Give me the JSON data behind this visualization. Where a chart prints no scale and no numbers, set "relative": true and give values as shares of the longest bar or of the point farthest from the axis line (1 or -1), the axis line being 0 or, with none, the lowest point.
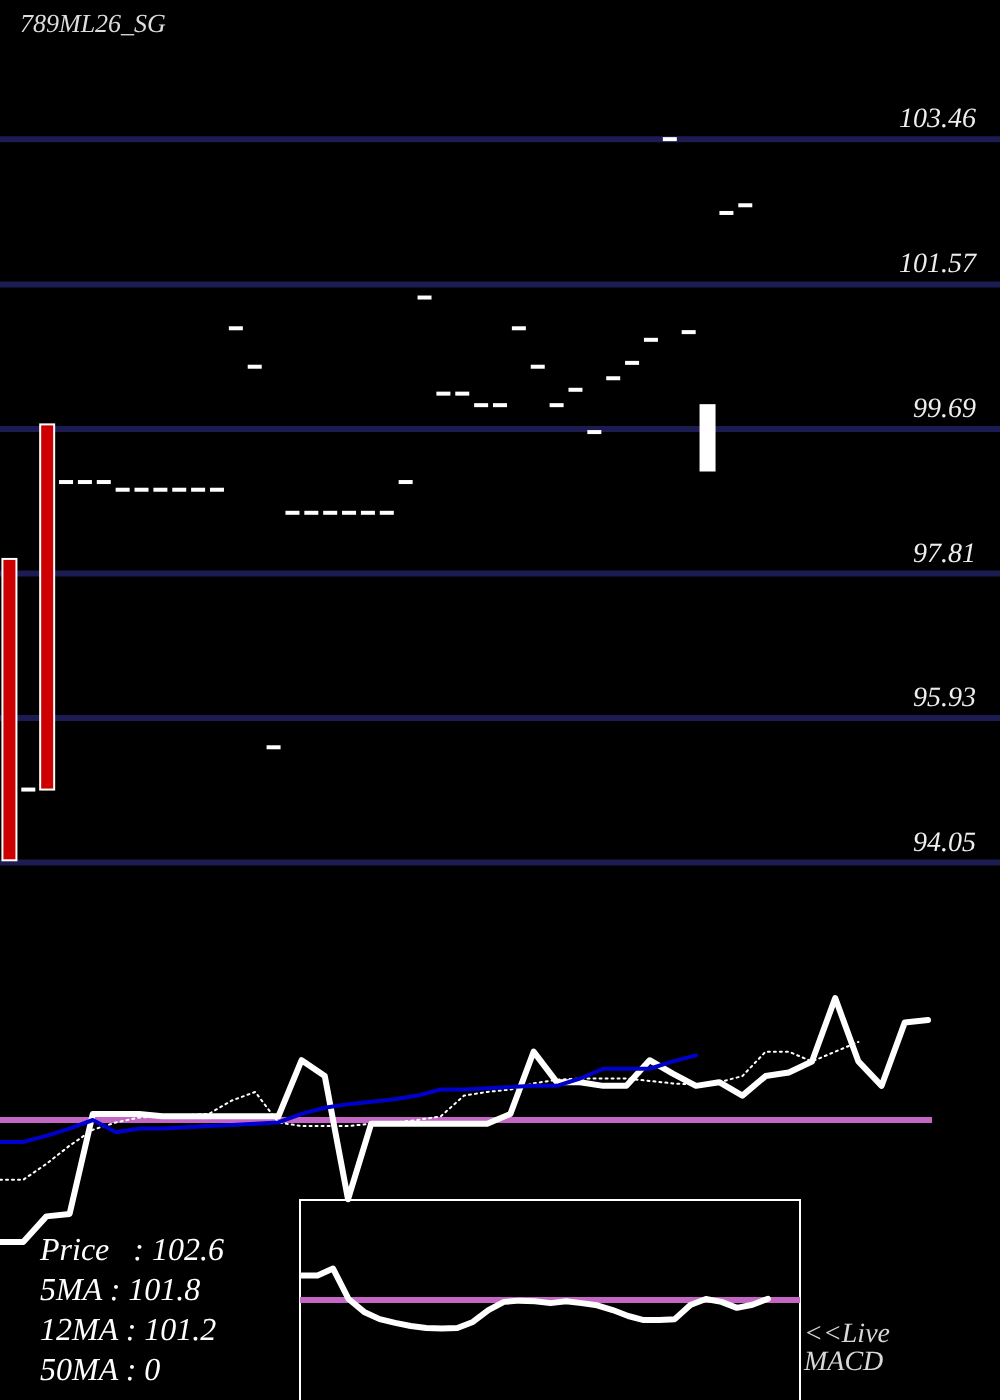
{
  "chart_data": [
    {
      "type": "candlestick",
      "title": "789ML26_SG",
      "categories": [
        null,
        null,
        null,
        null,
        null,
        null,
        null,
        null,
        null,
        null,
        null,
        null,
        null,
        null,
        null,
        null,
        null,
        null,
        null,
        null,
        null,
        null,
        null,
        null,
        null,
        null,
        null,
        null,
        null,
        null,
        null,
        null,
        null,
        null,
        null,
        null,
        null,
        null,
        null,
        null,
        null,
        null,
        null,
        null,
        null,
        null,
        null,
        null,
        null,
        null,
        null,
        null,
        null
      ],
      "ohlc": [
        [
          98.0,
          98.0,
          94.08,
          94.08
        ],
        [
          95.0,
          95.0,
          95.0,
          95.0
        ],
        [
          99.75,
          99.75,
          95.0,
          95.0
        ],
        [
          99.0,
          99.0,
          99.0,
          99.0
        ],
        [
          99.0,
          99.0,
          99.0,
          99.0
        ],
        [
          99.0,
          99.0,
          99.0,
          99.0
        ],
        [
          98.9,
          98.9,
          98.9,
          98.9
        ],
        [
          98.9,
          98.9,
          98.9,
          98.9
        ],
        [
          98.9,
          98.9,
          98.9,
          98.9
        ],
        [
          98.9,
          98.9,
          98.9,
          98.9
        ],
        [
          98.9,
          98.9,
          98.9,
          98.9
        ],
        [
          98.9,
          98.9,
          98.9,
          98.9
        ],
        [
          101.0,
          101.0,
          101.0,
          101.0
        ],
        [
          100.5,
          100.5,
          100.5,
          100.5
        ],
        [
          95.55,
          95.55,
          95.55,
          95.55
        ],
        [
          98.6,
          98.6,
          98.6,
          98.6
        ],
        [
          98.6,
          98.6,
          98.6,
          98.6
        ],
        [
          98.6,
          98.6,
          98.6,
          98.6
        ],
        [
          98.6,
          98.6,
          98.6,
          98.6
        ],
        [
          98.6,
          98.6,
          98.6,
          98.6
        ],
        [
          98.6,
          98.6,
          98.6,
          98.6
        ],
        [
          99.0,
          99.0,
          99.0,
          99.0
        ],
        [
          101.4,
          101.4,
          101.4,
          101.4
        ],
        [
          100.15,
          100.15,
          100.15,
          100.15
        ],
        [
          100.15,
          100.15,
          100.15,
          100.15
        ],
        [
          100.0,
          100.0,
          100.0,
          100.0
        ],
        [
          100.0,
          100.0,
          100.0,
          100.0
        ],
        [
          101.0,
          101.0,
          101.0,
          101.0
        ],
        [
          100.5,
          100.5,
          100.5,
          100.5
        ],
        [
          100.0,
          100.0,
          100.0,
          100.0
        ],
        [
          100.2,
          100.2,
          100.2,
          100.2
        ],
        [
          99.65,
          99.65,
          99.65,
          99.65
        ],
        [
          100.35,
          100.35,
          100.35,
          100.35
        ],
        [
          100.55,
          100.55,
          100.55,
          100.55
        ],
        [
          100.85,
          100.85,
          100.85,
          100.85
        ],
        [
          103.46,
          103.46,
          103.46,
          103.46
        ],
        [
          100.95,
          100.95,
          100.95,
          100.95
        ],
        [
          99.15,
          100.0,
          99.15,
          100.0
        ],
        [
          102.5,
          102.5,
          102.5,
          102.5
        ],
        [
          102.6,
          102.6,
          102.6,
          102.6
        ],
        null,
        null,
        null,
        null,
        null,
        null,
        null,
        null,
        null,
        null,
        null,
        null,
        null
      ],
      "colors": [
        "#cc0000",
        "#ffffff",
        "#cc0000",
        "#ffffff",
        "#ffffff",
        "#ffffff",
        "#ffffff",
        "#ffffff",
        "#ffffff",
        "#ffffff",
        "#ffffff",
        "#ffffff",
        "#ffffff",
        "#ffffff",
        "#ffffff",
        "#ffffff",
        "#ffffff",
        "#ffffff",
        "#ffffff",
        "#ffffff",
        "#ffffff",
        "#ffffff",
        "#ffffff",
        "#ffffff",
        "#ffffff",
        "#ffffff",
        "#ffffff",
        "#ffffff",
        "#ffffff",
        "#ffffff",
        "#ffffff",
        "#ffffff",
        "#ffffff",
        "#ffffff",
        "#ffffff",
        "#ffffff",
        "#ffffff",
        "#ffffff",
        "#ffffff",
        "#ffffff",
        null,
        null,
        null,
        null,
        null,
        null,
        null,
        null,
        null,
        null,
        null,
        null,
        null
      ],
      "ylim": [
        94.05,
        105.27
      ],
      "yticks": [
        94.05,
        95.93,
        97.81,
        99.69,
        101.57,
        103.46
      ],
      "grid": true
    },
    {
      "type": "line",
      "relative": true,
      "categories": [
        null,
        null,
        null,
        null,
        null,
        null,
        null,
        null,
        null,
        null,
        null,
        null,
        null,
        null,
        null,
        null,
        null,
        null,
        null,
        null,
        null,
        null,
        null,
        null,
        null,
        null,
        null,
        null,
        null,
        null,
        null,
        null,
        null,
        null,
        null,
        null,
        null,
        null,
        null,
        null,
        null
      ],
      "series": [
        {
          "color": "#ffffff",
          "line_style": "solid",
          "values": [
            -1,
            -1,
            -0.79,
            -0.77,
            0.05,
            0.05,
            0.05,
            0.03,
            0.03,
            0.03,
            0.03,
            0.03,
            0.03,
            0.49,
            0.36,
            -0.65,
            -0.03,
            -0.03,
            -0.03,
            -0.03,
            -0.03,
            -0.03,
            0.05,
            0.56,
            0.31,
            0.31,
            0.28,
            0.28,
            0.49,
            0.38,
            0.28,
            0.31,
            0.2,
            0.36,
            0.39,
            0.48,
            1,
            0.48,
            0.28,
            0.8,
            0.82
          ]
        },
        {
          "color": "#ffffff",
          "line_style": "dotted",
          "values": [
            -0.49,
            -0.49,
            -0.36,
            -0.21,
            -0.08,
            -0.02,
            0.02,
            0.03,
            0.04,
            0.05,
            0.16,
            0.23,
            -0.02,
            -0.05,
            -0.05,
            -0.05,
            -0.03,
            -0.02,
            0,
            0.03,
            0.2,
            0.23,
            0.25,
            0.3,
            0.33,
            0.34,
            0.34,
            0.34,
            0.32,
            0.3,
            0.29,
            0.31,
            0.36,
            0.56,
            0.56,
            0.48,
            0.56,
            0.64,
            null,
            null,
            null
          ]
        },
        {
          "color": "#0000cc",
          "line_style": "solid",
          "values": [
            -0.18,
            -0.18,
            -0.13,
            -0.07,
            0,
            -0.1,
            -0.07,
            -0.07,
            -0.06,
            -0.05,
            -0.04,
            -0.03,
            -0.02,
            0.05,
            0.1,
            0.13,
            0.15,
            0.17,
            0.2,
            0.25,
            0.25,
            0.26,
            0.27,
            0.28,
            0.28,
            0.34,
            0.42,
            0.42,
            0.42,
            0.48,
            0.53,
            null,
            null,
            null,
            null,
            null,
            null,
            null,
            null,
            null,
            null
          ]
        }
      ],
      "ref_lines": [
        {
          "axis": "y",
          "value": 0,
          "color": "#c466c4"
        }
      ],
      "annotations": [
        "Price   : 102.6",
        "5MA : 101.8",
        "12MA : 101.2",
        "50MA : 0"
      ]
    },
    {
      "type": "line",
      "relative": true,
      "categories": [
        null,
        null,
        null,
        null,
        null,
        null,
        null,
        null,
        null,
        null,
        null,
        null,
        null,
        null,
        null,
        null,
        null,
        null,
        null,
        null,
        null,
        null,
        null,
        null,
        null,
        null,
        null,
        null,
        null,
        null,
        null
      ],
      "series": [
        {
          "color": "#ffffff",
          "line_style": "solid",
          "values": [
            0.78,
            0.78,
            1,
            0.03,
            -0.38,
            -0.61,
            -0.73,
            -0.83,
            -0.89,
            -0.91,
            -0.89,
            -0.7,
            -0.32,
            -0.06,
            -0.02,
            -0.04,
            -0.1,
            -0.04,
            -0.1,
            -0.17,
            -0.32,
            -0.51,
            -0.64,
            -0.64,
            -0.61,
            -0.16,
            0.03,
            -0.06,
            -0.25,
            -0.15,
            0.04
          ]
        }
      ],
      "ref_lines": [
        {
          "axis": "y",
          "value": 0,
          "color": "#c466c4"
        }
      ],
      "annotations": [
        "<<Live MACD"
      ]
    }
  ]
}
